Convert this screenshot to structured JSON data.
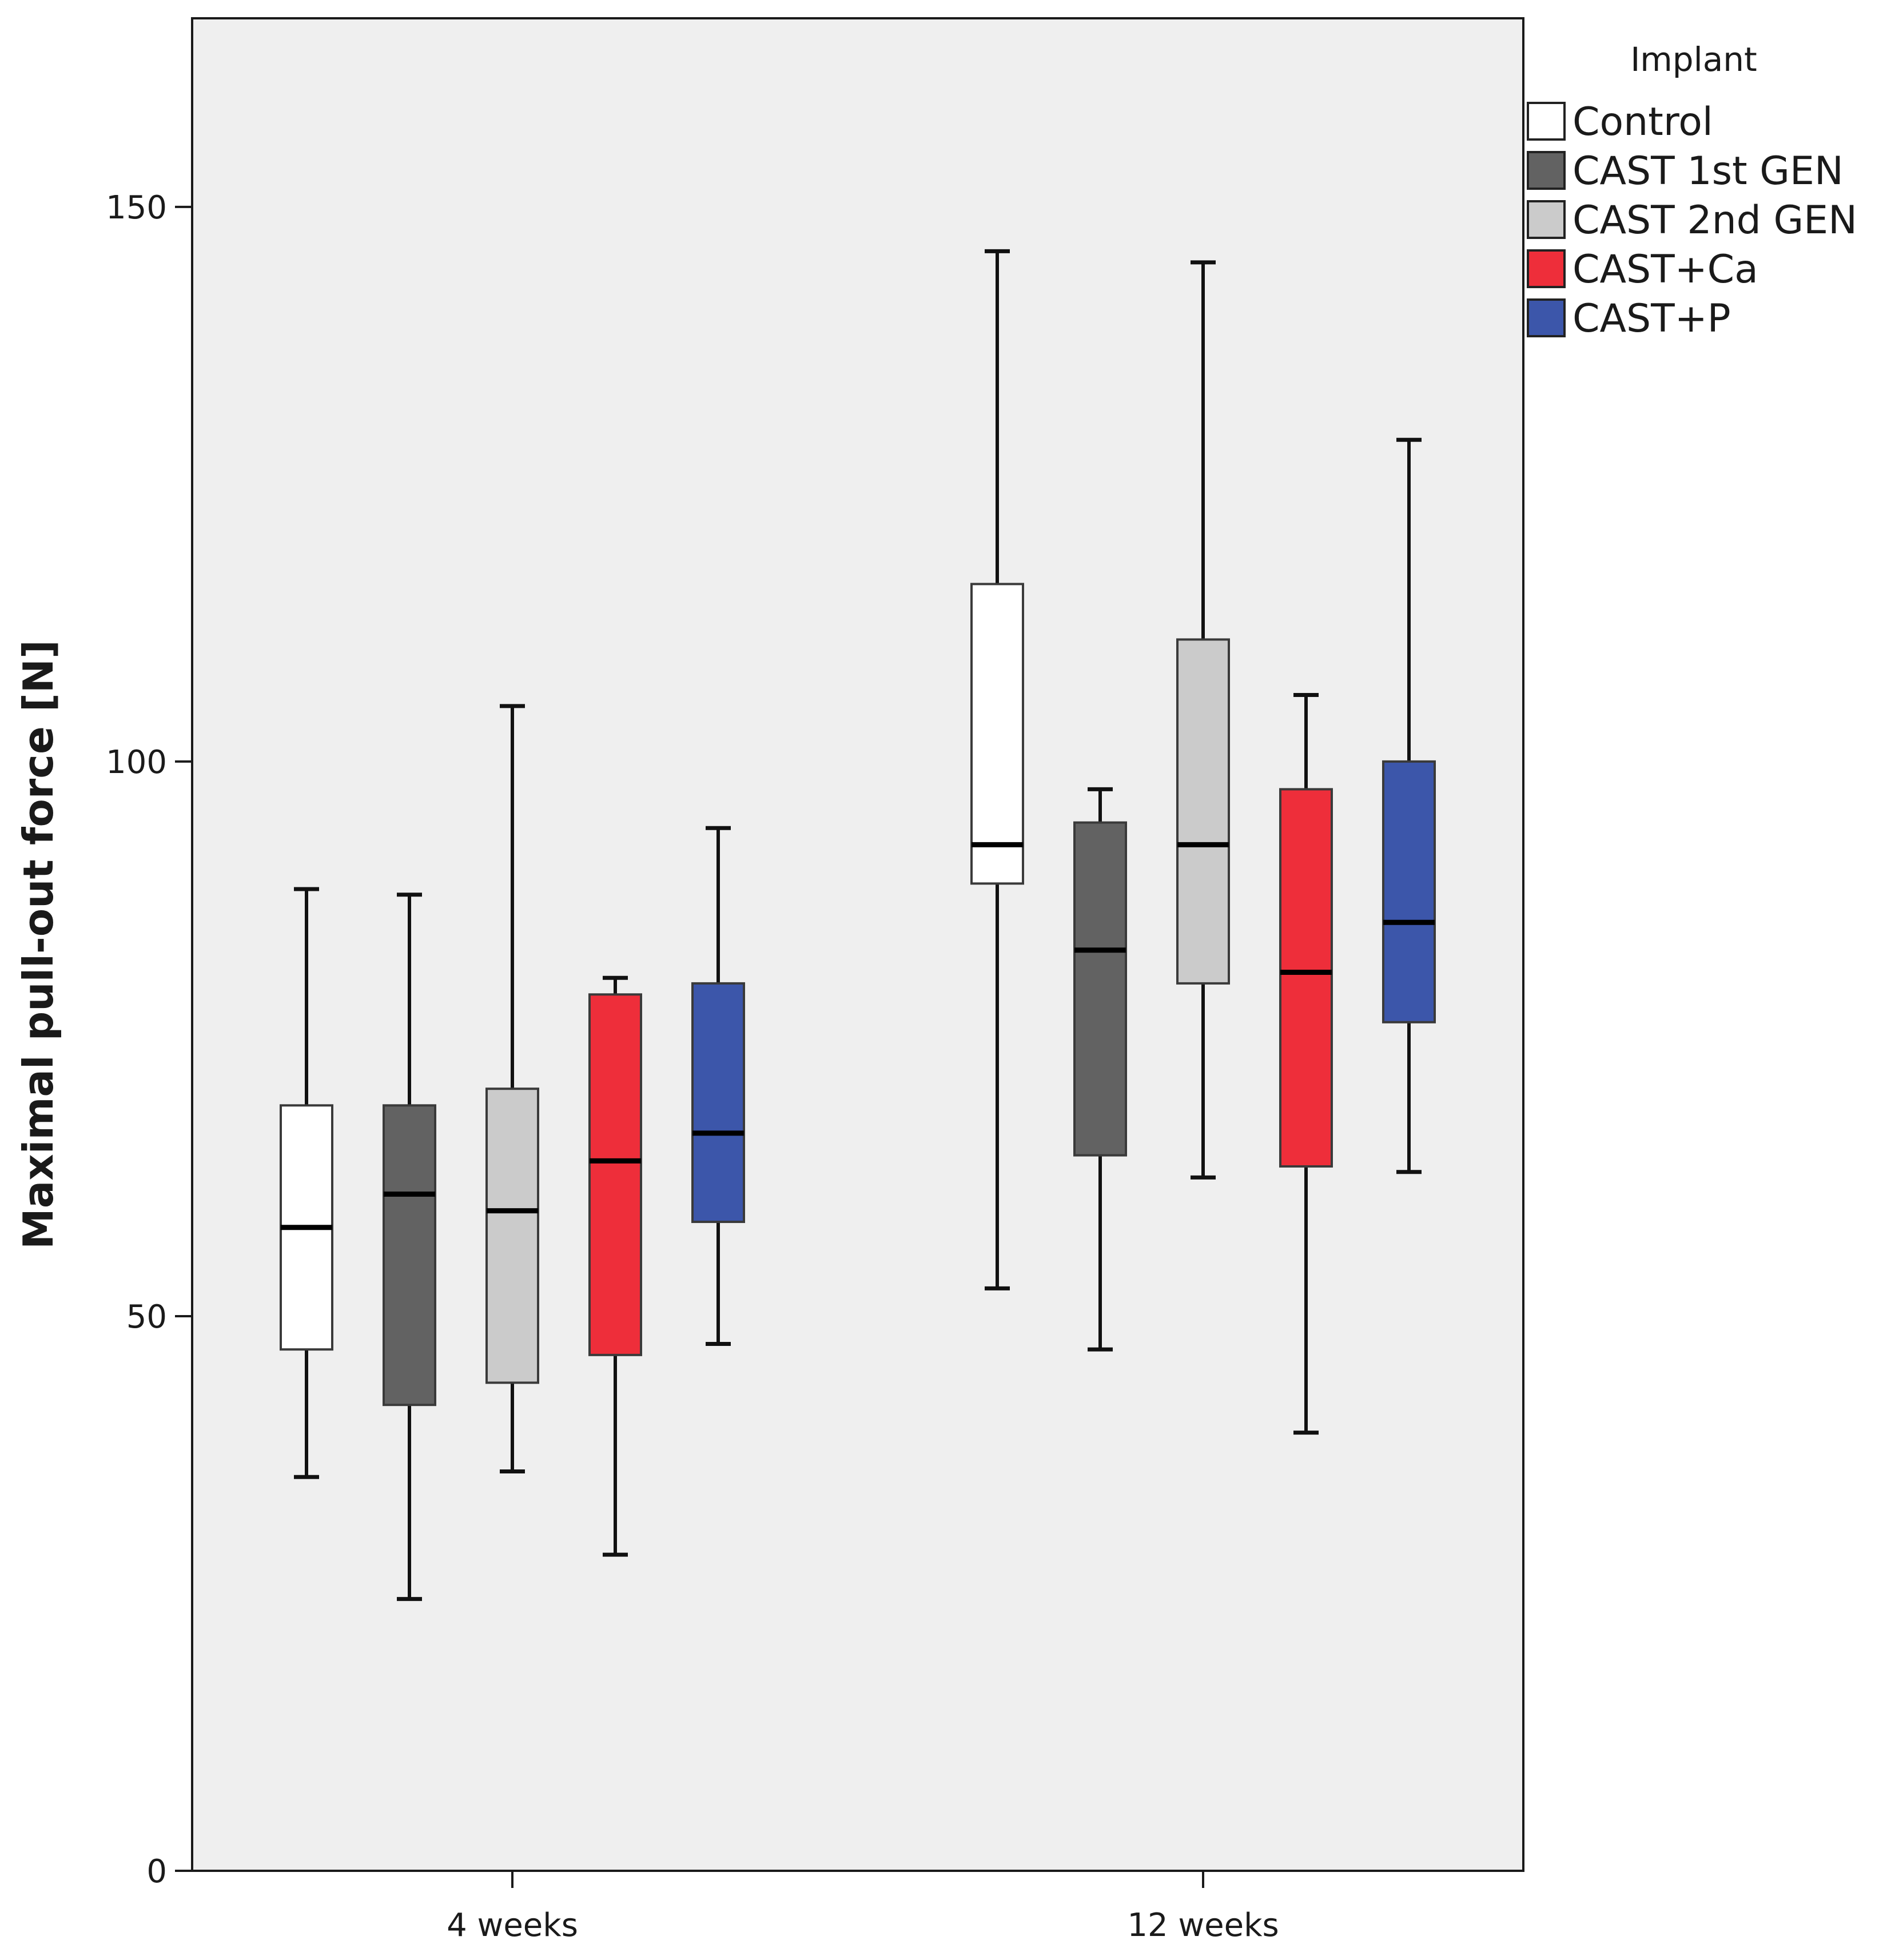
{
  "chart_data": {
    "type": "box",
    "title": "",
    "xlabel": "",
    "ylabel": "Maximal pull-out force [N]",
    "ylim": [
      0,
      167
    ],
    "yticks": [
      0,
      50,
      100,
      150
    ],
    "ytick_labels": [
      "0",
      "50",
      "100",
      "150"
    ],
    "categories": [
      "4 weeks",
      "12 weeks"
    ],
    "legend_title": "Implant",
    "legend_position": "top-right",
    "series": [
      {
        "name": "Control",
        "color": "#ffffff",
        "boxes": [
          {
            "min": 35.5,
            "q1": 47,
            "median": 58,
            "q3": 69,
            "max": 88.5
          },
          {
            "min": 52.5,
            "q1": 89,
            "median": 92.5,
            "q3": 116,
            "max": 146
          }
        ]
      },
      {
        "name": "CAST 1st GEN",
        "color": "#626262",
        "boxes": [
          {
            "min": 24.5,
            "q1": 42,
            "median": 61,
            "q3": 69,
            "max": 88
          },
          {
            "min": 47,
            "q1": 64.5,
            "median": 83,
            "q3": 94.5,
            "max": 97.5
          }
        ]
      },
      {
        "name": "CAST 2nd GEN",
        "color": "#cbcbcb",
        "boxes": [
          {
            "min": 36,
            "q1": 44,
            "median": 59.5,
            "q3": 70.5,
            "max": 105
          },
          {
            "min": 62.5,
            "q1": 80,
            "median": 92.5,
            "q3": 111,
            "max": 145
          }
        ]
      },
      {
        "name": "CAST+Ca",
        "color": "#ee2e3a",
        "boxes": [
          {
            "min": 28.5,
            "q1": 46.5,
            "median": 64,
            "q3": 79,
            "max": 80.5
          },
          {
            "min": 39.5,
            "q1": 63.5,
            "median": 81,
            "q3": 97.5,
            "max": 106
          }
        ]
      },
      {
        "name": "CAST+P",
        "color": "#3c56aa",
        "boxes": [
          {
            "min": 47.5,
            "q1": 58.5,
            "median": 66.5,
            "q3": 80,
            "max": 94
          },
          {
            "min": 63,
            "q1": 76.5,
            "median": 85.5,
            "q3": 100,
            "max": 129
          }
        ]
      }
    ]
  }
}
